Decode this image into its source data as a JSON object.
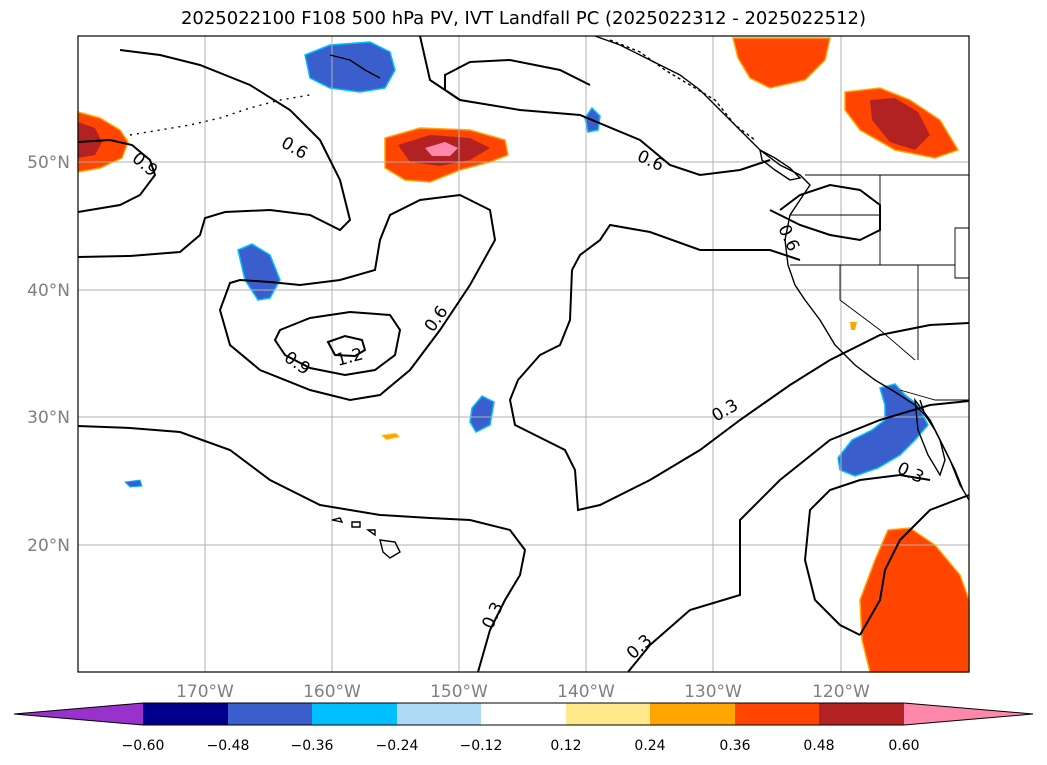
{
  "title": "2025022100 F108 500 hPa PV, IVT Landfall PC (2025022312 - 2025022512)",
  "lat_labels": [
    "50°N",
    "40°N",
    "30°N",
    "20°N"
  ],
  "lon_labels": [
    "170°W",
    "160°W",
    "150°W",
    "140°W",
    "130°W",
    "120°W"
  ],
  "contour_labels": [
    "0.9",
    "0.6",
    "0.6",
    "0.6",
    "0.6",
    "0.9",
    "1.2",
    "0.3",
    "0.3",
    "0.3",
    "0.3"
  ],
  "colorbar": {
    "ticks": [
      "−0.60",
      "−0.48",
      "−0.36",
      "−0.24",
      "−0.12",
      "0.12",
      "0.24",
      "0.36",
      "0.48",
      "0.60"
    ],
    "colors": [
      "#9932cc",
      "#00008b",
      "#3a5fcd",
      "#00bfff",
      "#add8f6",
      "#ffffff",
      "#ffe98a",
      "#ffa500",
      "#ff4500",
      "#b22222",
      "#ff88aa"
    ]
  }
}
